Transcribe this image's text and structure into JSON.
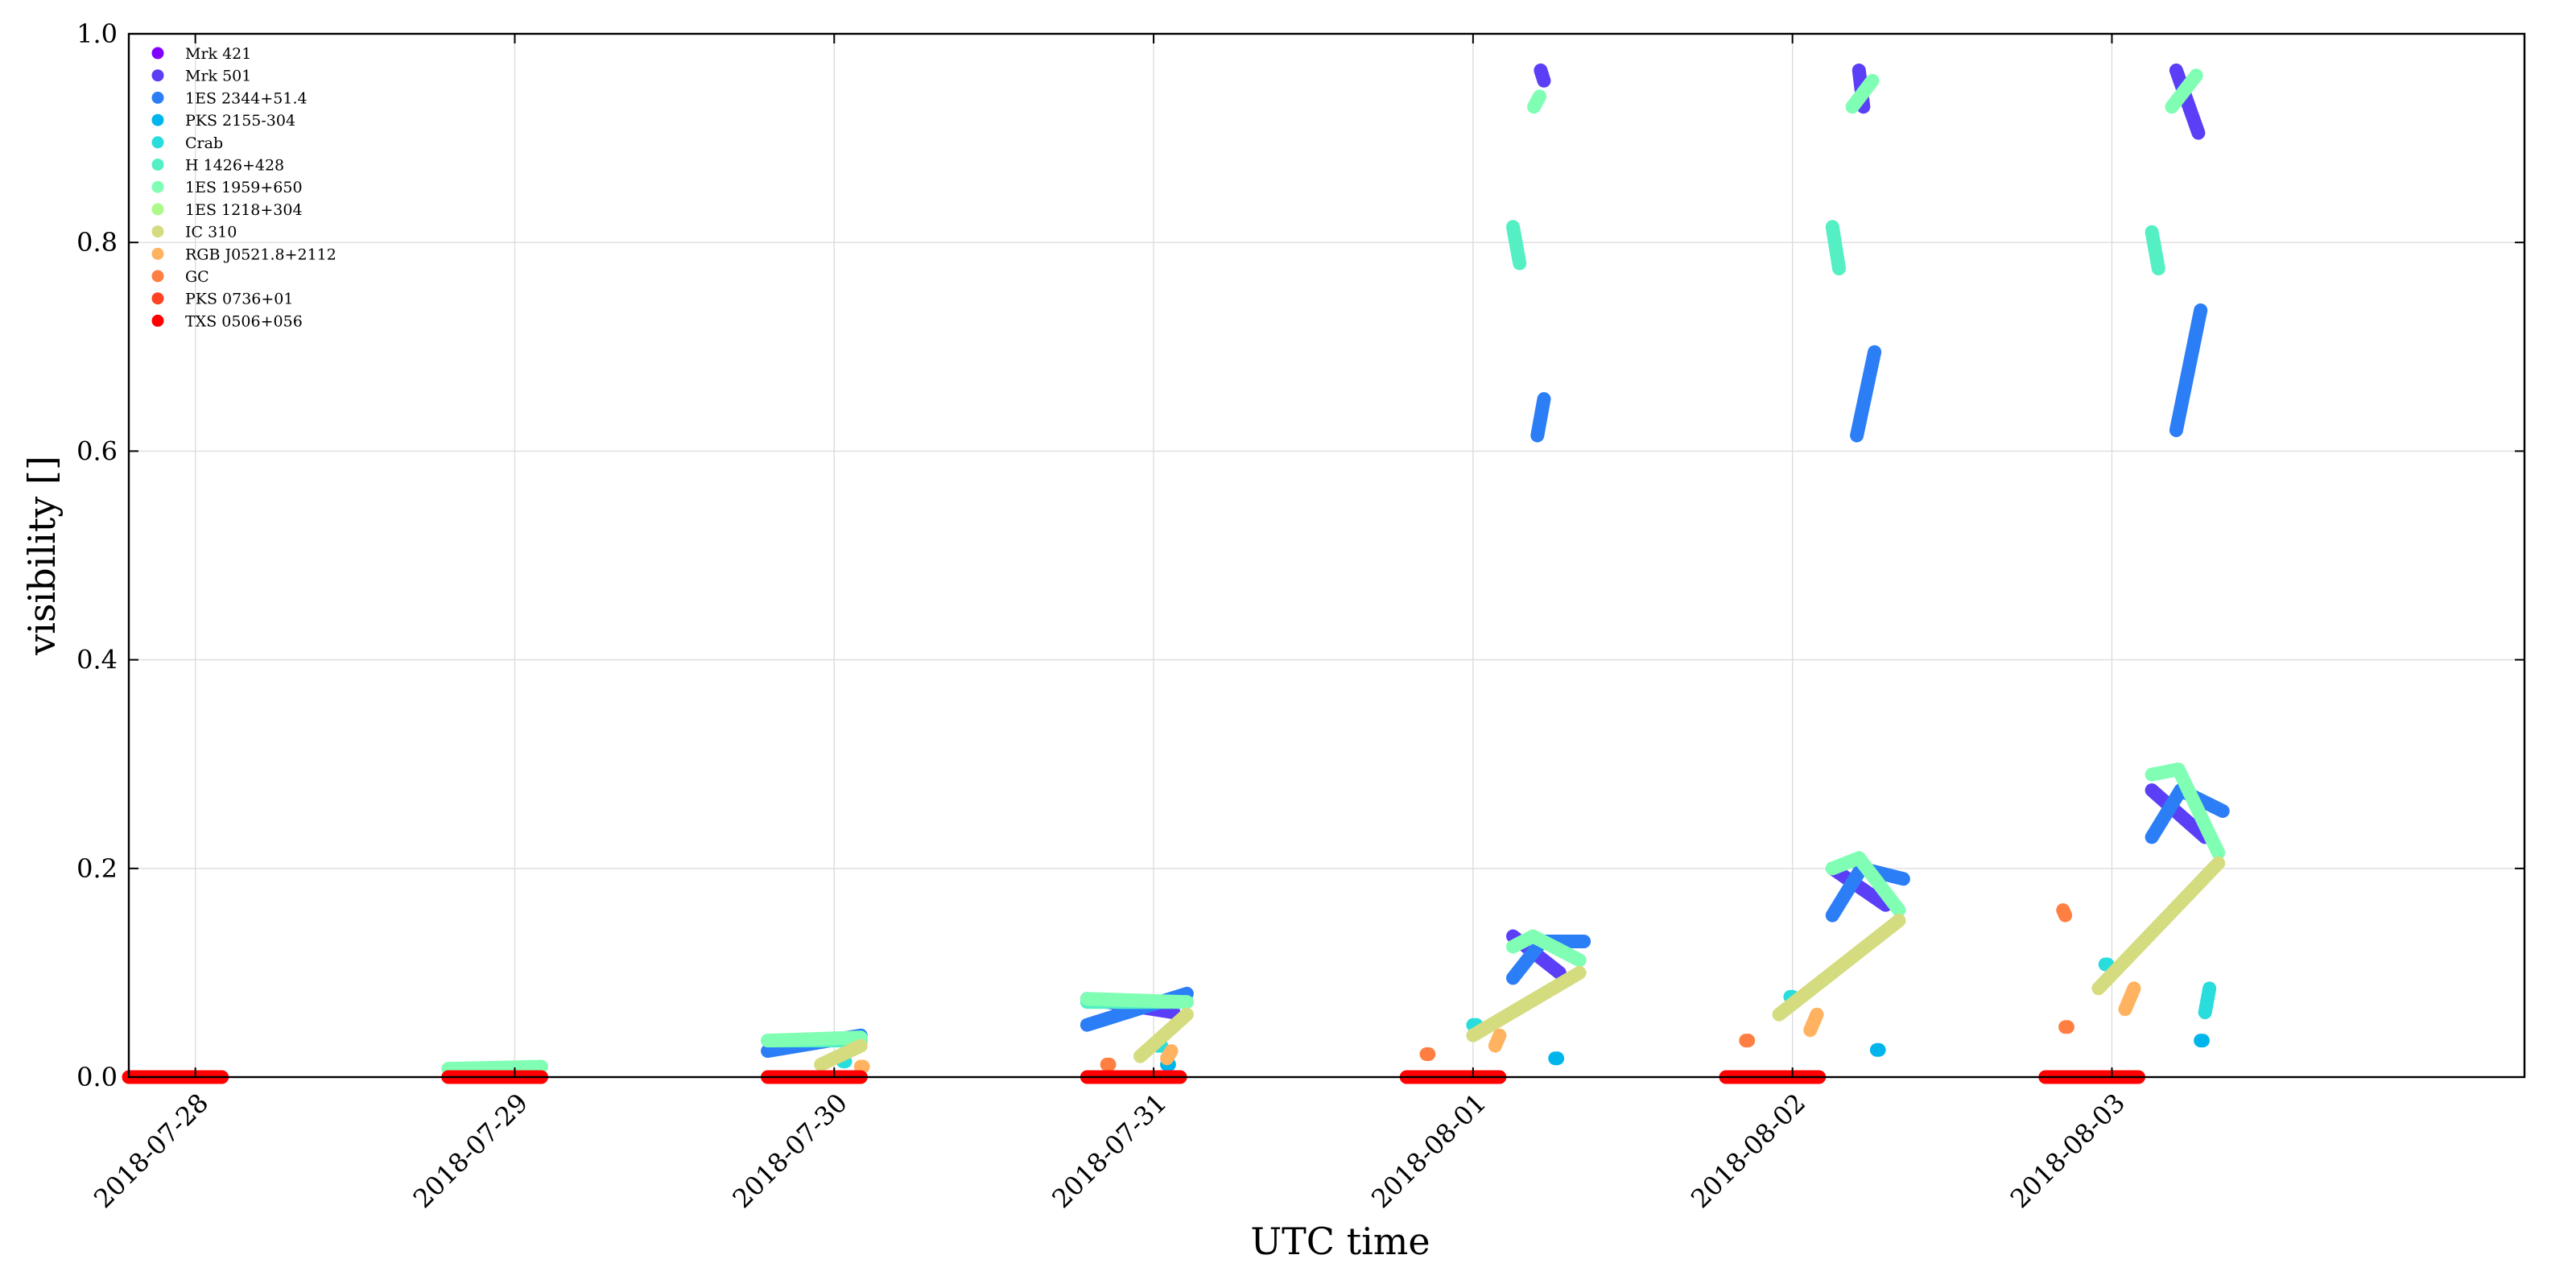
{
  "chart_data": {
    "type": "scatter",
    "title": "",
    "xlabel": "UTC time",
    "ylabel": "visibility []",
    "ylim": [
      0.0,
      1.0
    ],
    "xlim": [
      "2018-07-27 19:00",
      "2018-08-04 07:00"
    ],
    "y_ticks": [
      "0.0",
      "0.2",
      "0.4",
      "0.6",
      "0.8",
      "1.0"
    ],
    "x_ticks": [
      "2018-07-28",
      "2018-07-29",
      "2018-07-30",
      "2018-07-31",
      "2018-08-01",
      "2018-08-02",
      "2018-08-03"
    ],
    "grid": true,
    "legend_position": "upper-left",
    "series": [
      {
        "name": "Mrk 421",
        "color": "#8000ff",
        "segments": []
      },
      {
        "name": "Mrk 501",
        "color": "#5a3ff6",
        "segments": [
          {
            "x": [
              "2018-07-30 19:00",
              "2018-07-31 01:30"
            ],
            "y": [
              0.075,
              0.062
            ]
          },
          {
            "x": [
              "2018-08-01 05:05",
              "2018-08-01 05:20"
            ],
            "y": [
              0.965,
              0.955
            ]
          },
          {
            "x": [
              "2018-08-01 03:00",
              "2018-08-01 06:30"
            ],
            "y": [
              0.135,
              0.1
            ]
          },
          {
            "x": [
              "2018-08-02 05:00",
              "2018-08-02 05:20"
            ],
            "y": [
              0.965,
              0.93
            ]
          },
          {
            "x": [
              "2018-08-02 03:00",
              "2018-08-02 07:00"
            ],
            "y": [
              0.2,
              0.165
            ]
          },
          {
            "x": [
              "2018-08-03 04:50",
              "2018-08-03 06:30"
            ],
            "y": [
              0.965,
              0.905
            ]
          },
          {
            "x": [
              "2018-08-03 03:00",
              "2018-08-03 07:00"
            ],
            "y": [
              0.275,
              0.23
            ]
          }
        ]
      },
      {
        "name": "1ES 2344+51.4",
        "color": "#2c7ef7",
        "segments": [
          {
            "x": [
              "2018-07-29 19:00",
              "2018-07-30 02:00"
            ],
            "y": [
              0.025,
              0.04
            ]
          },
          {
            "x": [
              "2018-07-30 19:00",
              "2018-07-31 02:30"
            ],
            "y": [
              0.05,
              0.08
            ]
          },
          {
            "x": [
              "2018-08-01 03:00",
              "2018-08-01 05:10"
            ],
            "y": [
              0.095,
              0.13
            ]
          },
          {
            "x": [
              "2018-08-01 05:15",
              "2018-08-01 08:20"
            ],
            "y": [
              0.13,
              0.13
            ]
          },
          {
            "x": [
              "2018-08-01 04:50",
              "2018-08-01 05:20"
            ],
            "y": [
              0.615,
              0.65
            ]
          },
          {
            "x": [
              "2018-08-02 03:00",
              "2018-08-02 05:10"
            ],
            "y": [
              0.155,
              0.2
            ]
          },
          {
            "x": [
              "2018-08-02 05:10",
              "2018-08-02 08:20"
            ],
            "y": [
              0.2,
              0.19
            ]
          },
          {
            "x": [
              "2018-08-02 04:50",
              "2018-08-02 06:10"
            ],
            "y": [
              0.615,
              0.695
            ]
          },
          {
            "x": [
              "2018-08-03 03:00",
              "2018-08-03 05:10"
            ],
            "y": [
              0.23,
              0.275
            ]
          },
          {
            "x": [
              "2018-08-03 05:10",
              "2018-08-03 08:20"
            ],
            "y": [
              0.275,
              0.255
            ]
          },
          {
            "x": [
              "2018-08-03 04:50",
              "2018-08-03 06:40"
            ],
            "y": [
              0.62,
              0.735
            ]
          }
        ]
      },
      {
        "name": "PKS 2155-304",
        "color": "#00b5eb",
        "segments": [
          {
            "x": [
              "2018-07-31 01:00",
              "2018-07-31 01:10"
            ],
            "y": [
              0.012,
              0.012
            ]
          },
          {
            "x": [
              "2018-08-01 06:10",
              "2018-08-01 06:20"
            ],
            "y": [
              0.018,
              0.018
            ]
          },
          {
            "x": [
              "2018-08-02 06:20",
              "2018-08-02 06:30"
            ],
            "y": [
              0.026,
              0.026
            ]
          },
          {
            "x": [
              "2018-08-03 06:40",
              "2018-08-03 06:50"
            ],
            "y": [
              0.035,
              0.035
            ]
          }
        ]
      },
      {
        "name": "Crab",
        "color": "#2adddd",
        "segments": [
          {
            "x": [
              "2018-07-30 00:40",
              "2018-07-30 00:50"
            ],
            "y": [
              0.015,
              0.015
            ]
          },
          {
            "x": [
              "2018-07-31 00:20",
              "2018-07-31 00:35"
            ],
            "y": [
              0.03,
              0.03
            ]
          },
          {
            "x": [
              "2018-08-01 00:00",
              "2018-08-01 00:15"
            ],
            "y": [
              0.05,
              0.05
            ]
          },
          {
            "x": [
              "2018-08-01 23:50",
              "2018-08-02 00:00"
            ],
            "y": [
              0.077,
              0.077
            ]
          },
          {
            "x": [
              "2018-08-02 23:30",
              "2018-08-02 23:40"
            ],
            "y": [
              0.108,
              0.108
            ]
          },
          {
            "x": [
              "2018-08-03 07:00",
              "2018-08-03 07:20"
            ],
            "y": [
              0.062,
              0.085
            ]
          }
        ]
      },
      {
        "name": "H 1426+428",
        "color": "#54f0c3",
        "segments": [
          {
            "x": [
              "2018-07-29 19:00",
              "2018-07-30 02:00"
            ],
            "y": [
              0.035,
              0.035
            ]
          },
          {
            "x": [
              "2018-07-30 19:00",
              "2018-07-31 02:30"
            ],
            "y": [
              0.072,
              0.072
            ]
          },
          {
            "x": [
              "2018-08-01 03:00",
              "2018-08-01 03:30"
            ],
            "y": [
              0.815,
              0.78
            ]
          },
          {
            "x": [
              "2018-08-02 03:00",
              "2018-08-02 03:30"
            ],
            "y": [
              0.815,
              0.775
            ]
          },
          {
            "x": [
              "2018-08-03 03:00",
              "2018-08-03 03:30"
            ],
            "y": [
              0.81,
              0.775
            ]
          }
        ]
      },
      {
        "name": "1ES 1959+650",
        "color": "#80ffb4",
        "segments": [
          {
            "x": [
              "2018-07-28 19:00",
              "2018-07-29 02:00"
            ],
            "y": [
              0.008,
              0.01
            ]
          },
          {
            "x": [
              "2018-07-29 19:00",
              "2018-07-30 02:00"
            ],
            "y": [
              0.035,
              0.038
            ]
          },
          {
            "x": [
              "2018-07-30 19:00",
              "2018-07-31 02:30"
            ],
            "y": [
              0.075,
              0.072
            ]
          },
          {
            "x": [
              "2018-08-01 03:00",
              "2018-08-01 04:30",
              "2018-08-01 08:00"
            ],
            "y": [
              0.125,
              0.135,
              0.112
            ]
          },
          {
            "x": [
              "2018-08-01 04:35",
              "2018-08-01 05:00"
            ],
            "y": [
              0.93,
              0.94
            ]
          },
          {
            "x": [
              "2018-08-02 03:00",
              "2018-08-02 05:00",
              "2018-08-02 08:00"
            ],
            "y": [
              0.2,
              0.21,
              0.16
            ]
          },
          {
            "x": [
              "2018-08-02 04:30",
              "2018-08-02 06:00"
            ],
            "y": [
              0.93,
              0.955
            ]
          },
          {
            "x": [
              "2018-08-03 03:00",
              "2018-08-03 05:00",
              "2018-08-03 08:00"
            ],
            "y": [
              0.29,
              0.295,
              0.215
            ]
          },
          {
            "x": [
              "2018-08-03 04:30",
              "2018-08-03 06:20"
            ],
            "y": [
              0.93,
              0.96
            ]
          }
        ]
      },
      {
        "name": "1ES 1218+304",
        "color": "#acfa8a",
        "segments": []
      },
      {
        "name": "IC 310",
        "color": "#d4dc7f",
        "segments": [
          {
            "x": [
              "2018-07-29 23:00",
              "2018-07-30 02:00"
            ],
            "y": [
              0.012,
              0.03
            ]
          },
          {
            "x": [
              "2018-07-30 23:00",
              "2018-07-31 02:30"
            ],
            "y": [
              0.02,
              0.06
            ]
          },
          {
            "x": [
              "2018-08-01 00:00",
              "2018-08-01 08:00"
            ],
            "y": [
              0.04,
              0.1
            ]
          },
          {
            "x": [
              "2018-08-01 23:00",
              "2018-08-02 08:00"
            ],
            "y": [
              0.06,
              0.15
            ]
          },
          {
            "x": [
              "2018-08-02 23:00",
              "2018-08-03 08:00"
            ],
            "y": [
              0.085,
              0.205
            ]
          }
        ]
      },
      {
        "name": "RGB J0521.8+2112",
        "color": "#ffb360",
        "segments": [
          {
            "x": [
              "2018-07-30 02:00",
              "2018-07-30 02:10"
            ],
            "y": [
              0.01,
              0.01
            ]
          },
          {
            "x": [
              "2018-07-31 01:00",
              "2018-07-31 01:20"
            ],
            "y": [
              0.018,
              0.025
            ]
          },
          {
            "x": [
              "2018-08-01 01:40",
              "2018-08-01 02:00"
            ],
            "y": [
              0.03,
              0.04
            ]
          },
          {
            "x": [
              "2018-08-02 01:20",
              "2018-08-02 01:50"
            ],
            "y": [
              0.045,
              0.06
            ]
          },
          {
            "x": [
              "2018-08-03 01:00",
              "2018-08-03 01:40"
            ],
            "y": [
              0.065,
              0.085
            ]
          }
        ]
      },
      {
        "name": "GC",
        "color": "#ff7e41",
        "segments": [
          {
            "x": [
              "2018-07-30 20:30",
              "2018-07-30 20:40"
            ],
            "y": [
              0.012,
              0.012
            ]
          },
          {
            "x": [
              "2018-07-31 20:30",
              "2018-07-31 20:40"
            ],
            "y": [
              0.022,
              0.022
            ]
          },
          {
            "x": [
              "2018-08-01 20:30",
              "2018-08-01 20:40"
            ],
            "y": [
              0.035,
              0.035
            ]
          },
          {
            "x": [
              "2018-08-02 20:20",
              "2018-08-02 20:30"
            ],
            "y": [
              0.16,
              0.155
            ]
          },
          {
            "x": [
              "2018-08-02 20:30",
              "2018-08-02 20:40"
            ],
            "y": [
              0.048,
              0.048
            ]
          }
        ]
      },
      {
        "name": "PKS 0736+01",
        "color": "#ff4221",
        "segments": []
      },
      {
        "name": "TXS 0506+056",
        "color": "#ff0000",
        "segments": [
          {
            "x": [
              "2018-07-27 19:00",
              "2018-07-28 02:00"
            ],
            "y": [
              0.0,
              0.0
            ]
          },
          {
            "x": [
              "2018-07-28 19:00",
              "2018-07-29 02:00"
            ],
            "y": [
              0.0,
              0.0
            ]
          },
          {
            "x": [
              "2018-07-29 19:00",
              "2018-07-30 02:00"
            ],
            "y": [
              0.0,
              0.0
            ]
          },
          {
            "x": [
              "2018-07-30 19:00",
              "2018-07-31 02:00"
            ],
            "y": [
              0.0,
              0.0
            ]
          },
          {
            "x": [
              "2018-07-31 19:00",
              "2018-08-01 02:00"
            ],
            "y": [
              0.0,
              0.0
            ]
          },
          {
            "x": [
              "2018-08-01 19:00",
              "2018-08-02 02:00"
            ],
            "y": [
              0.0,
              0.0
            ]
          },
          {
            "x": [
              "2018-08-02 19:00",
              "2018-08-03 02:00"
            ],
            "y": [
              0.0,
              0.0
            ]
          }
        ]
      }
    ]
  }
}
